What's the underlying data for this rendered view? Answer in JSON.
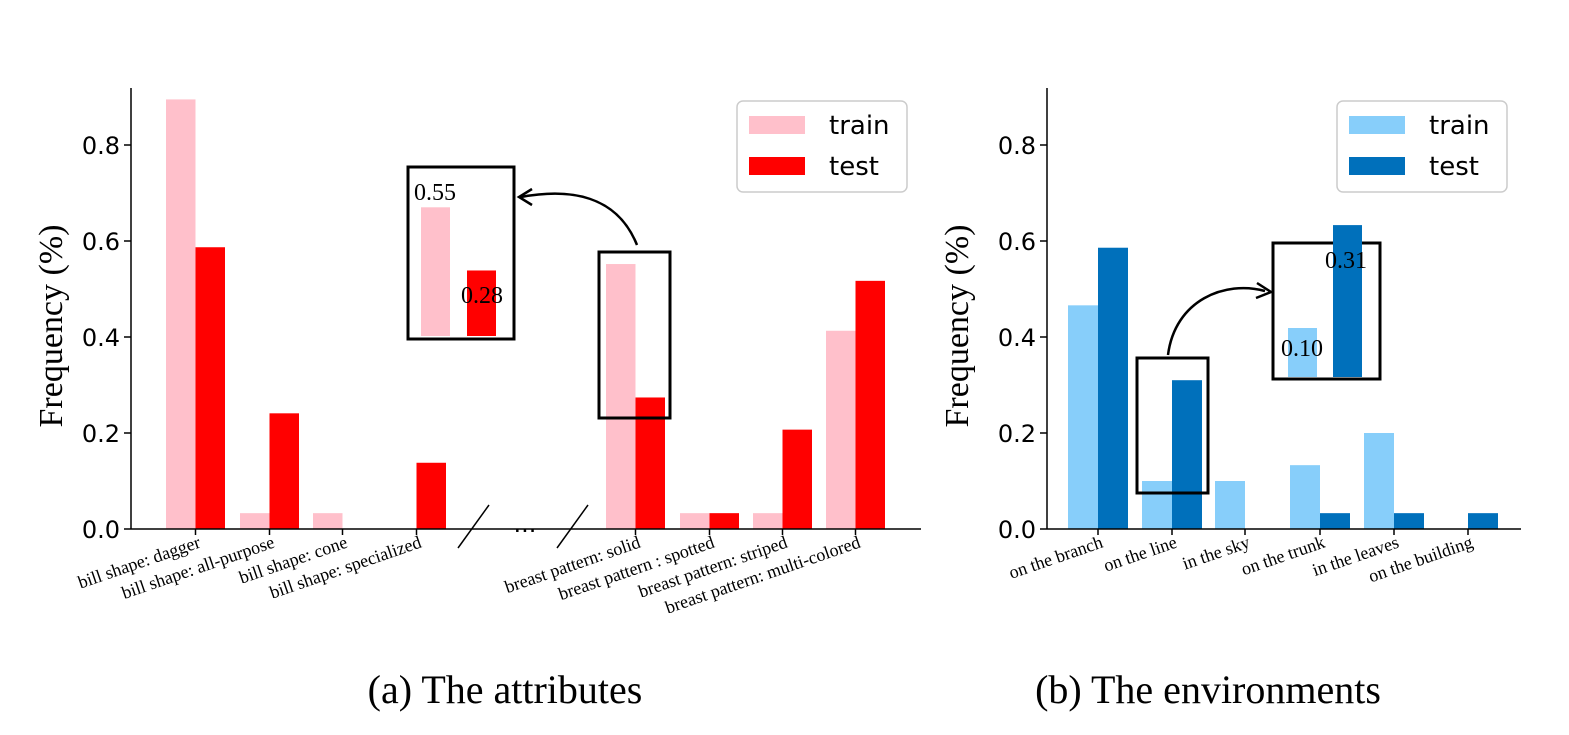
{
  "colors": {
    "a_train": "#ffc0cb",
    "a_test": "#ff0000",
    "b_train": "#87cefa",
    "b_test": "#0070bb"
  },
  "chart_data": [
    {
      "type": "bar",
      "caption": "(a) The attributes",
      "ylabel": "Frequency (%)",
      "ylim": [
        0,
        0.92
      ],
      "yticks": [
        "0.0",
        "0.2",
        "0.4",
        "0.6",
        "0.8"
      ],
      "legend_position": "top-right",
      "categories": [
        "bill shape: dagger",
        "bill shape: all-purpose",
        "bill shape: cone",
        "bill shape: specialized",
        "breast pattern: solid",
        "breast pattern : spotted",
        "breast pattern: striped",
        "breast pattern: multi-colored"
      ],
      "axis_break_text": "...",
      "series": [
        {
          "name": "train",
          "values": [
            0.895,
            0.033,
            0.033,
            0.0,
            0.552,
            0.033,
            0.033,
            0.413
          ]
        },
        {
          "name": "test",
          "values": [
            0.587,
            0.241,
            0.0,
            0.138,
            0.274,
            0.033,
            0.207,
            0.517
          ]
        }
      ],
      "inset": {
        "train_label": "0.55",
        "test_label": "0.28",
        "train_value": 0.55,
        "test_value": 0.28
      }
    },
    {
      "type": "bar",
      "caption": "(b) The environments",
      "ylabel": "Frequency (%)",
      "ylim": [
        0,
        0.92
      ],
      "yticks": [
        "0.0",
        "0.2",
        "0.4",
        "0.6",
        "0.8"
      ],
      "legend_position": "top-right",
      "categories": [
        "on the branch",
        "on the line",
        "in the sky",
        "on the trunk",
        "in the leaves",
        "on the building"
      ],
      "series": [
        {
          "name": "train",
          "values": [
            0.466,
            0.1,
            0.1,
            0.133,
            0.2,
            0.0
          ]
        },
        {
          "name": "test",
          "values": [
            0.586,
            0.31,
            0.0,
            0.033,
            0.033,
            0.033
          ]
        }
      ],
      "inset": {
        "train_label": "0.10",
        "test_label": "0.31",
        "train_value": 0.1,
        "test_value": 0.31
      }
    }
  ]
}
